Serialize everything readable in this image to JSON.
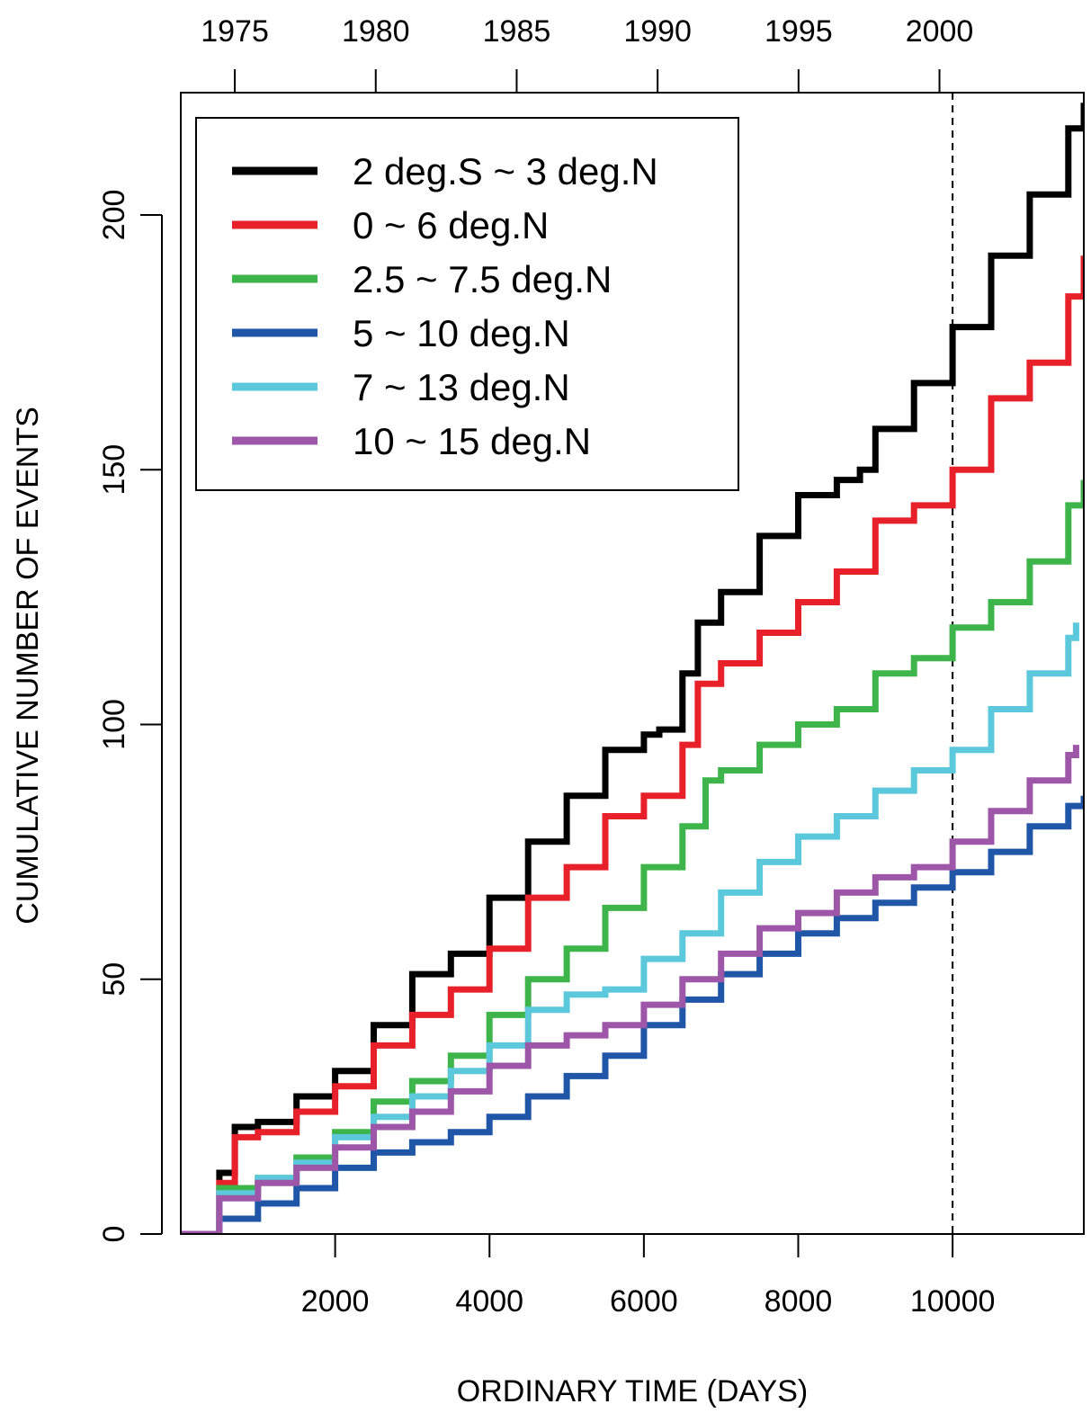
{
  "chart_data": {
    "type": "line",
    "title": "",
    "xlabel": "ORDINARY TIME (DAYS)",
    "ylabel": "CUMULATIVE NUMBER OF EVENTS",
    "xlim": [
      0,
      11700
    ],
    "ylim": [
      0,
      224
    ],
    "x_ticks": [
      2000,
      4000,
      6000,
      8000,
      10000
    ],
    "y_ticks": [
      0,
      50,
      100,
      150,
      200
    ],
    "top_axis": {
      "labels": [
        "1975",
        "1980",
        "1985",
        "1990",
        "1995",
        "2000"
      ],
      "x": [
        700,
        2526,
        4352,
        6178,
        8004,
        9830
      ]
    },
    "reference_line_x": 10000,
    "grid": false,
    "legend_position": "top-left",
    "series": [
      {
        "name": "2 deg.S ~ 3 deg.N",
        "color": "#000000",
        "x": [
          0,
          500,
          700,
          1000,
          1500,
          2000,
          2500,
          3000,
          3500,
          4000,
          4500,
          5000,
          5500,
          6000,
          6200,
          6500,
          6700,
          7000,
          7500,
          8000,
          8500,
          8800,
          9000,
          9500,
          10000,
          10500,
          11000,
          11500,
          11700
        ],
        "y": [
          0,
          12,
          21,
          22,
          27,
          32,
          41,
          51,
          55,
          66,
          77,
          86,
          95,
          98,
          99,
          110,
          120,
          126,
          137,
          145,
          148,
          150,
          158,
          167,
          178,
          192,
          204,
          217,
          222
        ]
      },
      {
        "name": "0 ~ 6 deg.N",
        "color": "#e8202a",
        "x": [
          0,
          500,
          700,
          1000,
          1500,
          2000,
          2500,
          3000,
          3500,
          4000,
          4500,
          5000,
          5500,
          6000,
          6500,
          6700,
          7000,
          7500,
          8000,
          8500,
          9000,
          9500,
          10000,
          10500,
          11000,
          11500,
          11700
        ],
        "y": [
          0,
          10,
          19,
          20,
          24,
          29,
          37,
          43,
          48,
          56,
          66,
          72,
          82,
          86,
          96,
          108,
          112,
          118,
          124,
          130,
          140,
          143,
          150,
          164,
          171,
          184,
          192
        ]
      },
      {
        "name": "2.5 ~ 7.5 deg.N",
        "color": "#3db54a",
        "x": [
          0,
          500,
          1000,
          1500,
          2000,
          2500,
          3000,
          3500,
          4000,
          4500,
          5000,
          5500,
          6000,
          6500,
          6800,
          7000,
          7500,
          8000,
          8500,
          9000,
          9500,
          10000,
          10500,
          11000,
          11500,
          11700
        ],
        "y": [
          0,
          9,
          11,
          15,
          20,
          26,
          30,
          35,
          43,
          50,
          56,
          64,
          72,
          80,
          89,
          91,
          96,
          100,
          103,
          110,
          113,
          119,
          124,
          132,
          143,
          148
        ]
      },
      {
        "name": "5 ~ 10 deg.N",
        "color": "#1f56a8",
        "x": [
          0,
          500,
          1000,
          1500,
          2000,
          2500,
          3000,
          3500,
          4000,
          4500,
          5000,
          5500,
          6000,
          6500,
          7000,
          7500,
          8000,
          8500,
          9000,
          9500,
          10000,
          10500,
          11000,
          11500,
          11700
        ],
        "y": [
          0,
          3,
          6,
          9,
          13,
          16,
          18,
          20,
          23,
          27,
          31,
          35,
          41,
          46,
          51,
          55,
          59,
          62,
          65,
          68,
          71,
          75,
          80,
          84,
          86
        ]
      },
      {
        "name": "7 ~ 13 deg.N",
        "color": "#5bc8dc",
        "x": [
          0,
          500,
          1000,
          1500,
          2000,
          2500,
          3000,
          3500,
          4000,
          4500,
          5000,
          5500,
          6000,
          6500,
          7000,
          7500,
          8000,
          8500,
          9000,
          9500,
          10000,
          10500,
          11000,
          11500,
          11600
        ],
        "y": [
          0,
          8,
          11,
          14,
          19,
          23,
          27,
          32,
          37,
          44,
          47,
          48,
          54,
          59,
          67,
          73,
          78,
          82,
          87,
          91,
          95,
          103,
          110,
          117,
          120
        ]
      },
      {
        "name": "10 ~ 15 deg.N",
        "color": "#9e57a8",
        "x": [
          0,
          500,
          1000,
          1500,
          2000,
          2500,
          3000,
          3500,
          4000,
          4500,
          5000,
          5500,
          6000,
          6500,
          7000,
          7500,
          8000,
          8500,
          9000,
          9500,
          10000,
          10500,
          11000,
          11500,
          11600
        ],
        "y": [
          0,
          7,
          10,
          13,
          17,
          21,
          24,
          28,
          33,
          37,
          39,
          41,
          45,
          50,
          55,
          60,
          63,
          67,
          70,
          72,
          77,
          83,
          89,
          94,
          96
        ]
      }
    ]
  }
}
